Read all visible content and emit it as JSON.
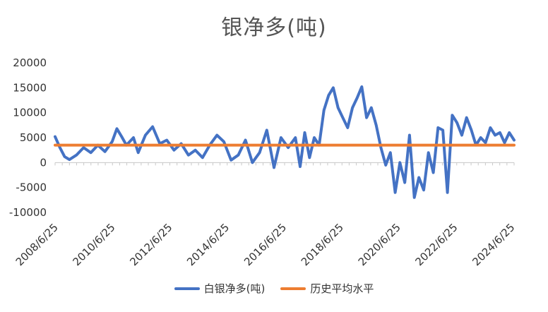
{
  "chart_data": {
    "type": "line",
    "title": "银净多(吨)",
    "colors": {
      "series_main": "#4472C4",
      "series_avg": "#ED7D31"
    },
    "ylim": [
      -10000,
      20000
    ],
    "yticks": [
      20000,
      15000,
      10000,
      5000,
      0,
      -5000,
      -10000
    ],
    "xlim": [
      "2008/6/25",
      "2024/7/25"
    ],
    "x_tick_labels": [
      "2008/6/25",
      "2010/6/25",
      "2012/6/25",
      "2014/6/25",
      "2016/6/25",
      "2018/6/25",
      "2020/6/25",
      "2022/6/25",
      "2024/6/25"
    ],
    "grid": false,
    "legend_position": "bottom",
    "series": [
      {
        "name": "白银净多(吨)",
        "points": [
          [
            "2008/6/25",
            5200
          ],
          [
            "2008/8/25",
            3000
          ],
          [
            "2008/10/25",
            1200
          ],
          [
            "2008/12/25",
            600
          ],
          [
            "2009/3/25",
            1500
          ],
          [
            "2009/6/25",
            3000
          ],
          [
            "2009/9/25",
            2000
          ],
          [
            "2009/12/25",
            3500
          ],
          [
            "2010/3/25",
            2200
          ],
          [
            "2010/6/25",
            4200
          ],
          [
            "2010/8/25",
            6800
          ],
          [
            "2010/10/25",
            5200
          ],
          [
            "2010/12/25",
            3500
          ],
          [
            "2011/3/25",
            5000
          ],
          [
            "2011/5/25",
            2000
          ],
          [
            "2011/8/25",
            5500
          ],
          [
            "2011/11/25",
            7200
          ],
          [
            "2012/2/25",
            3800
          ],
          [
            "2012/5/25",
            4500
          ],
          [
            "2012/8/25",
            2500
          ],
          [
            "2012/11/25",
            3800
          ],
          [
            "2013/2/25",
            1500
          ],
          [
            "2013/5/25",
            2500
          ],
          [
            "2013/8/25",
            1000
          ],
          [
            "2013/11/25",
            3500
          ],
          [
            "2014/2/25",
            5500
          ],
          [
            "2014/5/25",
            4200
          ],
          [
            "2014/8/25",
            500
          ],
          [
            "2014/11/25",
            1500
          ],
          [
            "2015/2/25",
            4500
          ],
          [
            "2015/5/25",
            0
          ],
          [
            "2015/8/25",
            2000
          ],
          [
            "2015/11/25",
            6500
          ],
          [
            "2016/2/25",
            -1000
          ],
          [
            "2016/5/25",
            5000
          ],
          [
            "2016/8/25",
            3000
          ],
          [
            "2016/11/25",
            5000
          ],
          [
            "2017/1/25",
            -800
          ],
          [
            "2017/3/25",
            6000
          ],
          [
            "2017/5/25",
            1000
          ],
          [
            "2017/7/25",
            5000
          ],
          [
            "2017/9/25",
            3500
          ],
          [
            "2017/11/25",
            10500
          ],
          [
            "2018/1/25",
            13500
          ],
          [
            "2018/3/25",
            15000
          ],
          [
            "2018/5/25",
            11000
          ],
          [
            "2018/7/25",
            9000
          ],
          [
            "2018/9/25",
            7000
          ],
          [
            "2018/11/25",
            11000
          ],
          [
            "2019/1/25",
            13000
          ],
          [
            "2019/3/25",
            15200
          ],
          [
            "2019/5/25",
            9000
          ],
          [
            "2019/7/25",
            11000
          ],
          [
            "2019/9/25",
            7500
          ],
          [
            "2019/11/25",
            3000
          ],
          [
            "2020/1/25",
            -500
          ],
          [
            "2020/3/25",
            2000
          ],
          [
            "2020/5/25",
            -6000
          ],
          [
            "2020/7/25",
            0
          ],
          [
            "2020/9/25",
            -4000
          ],
          [
            "2020/11/25",
            5500
          ],
          [
            "2021/1/25",
            -7000
          ],
          [
            "2021/3/25",
            -3000
          ],
          [
            "2021/5/25",
            -5500
          ],
          [
            "2021/7/25",
            2000
          ],
          [
            "2021/9/25",
            -2000
          ],
          [
            "2021/11/25",
            7000
          ],
          [
            "2022/1/25",
            6500
          ],
          [
            "2022/3/25",
            -6000
          ],
          [
            "2022/5/25",
            9500
          ],
          [
            "2022/7/25",
            8000
          ],
          [
            "2022/9/25",
            5500
          ],
          [
            "2022/11/25",
            9000
          ],
          [
            "2023/1/25",
            6500
          ],
          [
            "2023/3/25",
            3500
          ],
          [
            "2023/5/25",
            5000
          ],
          [
            "2023/7/25",
            4000
          ],
          [
            "2023/9/25",
            7000
          ],
          [
            "2023/11/25",
            5500
          ],
          [
            "2024/1/25",
            6000
          ],
          [
            "2024/3/25",
            4000
          ],
          [
            "2024/5/25",
            6000
          ],
          [
            "2024/7/25",
            4500
          ]
        ]
      },
      {
        "name": "历史平均水平",
        "points": [
          [
            "2008/6/25",
            3500
          ],
          [
            "2024/7/25",
            3500
          ]
        ]
      }
    ]
  }
}
